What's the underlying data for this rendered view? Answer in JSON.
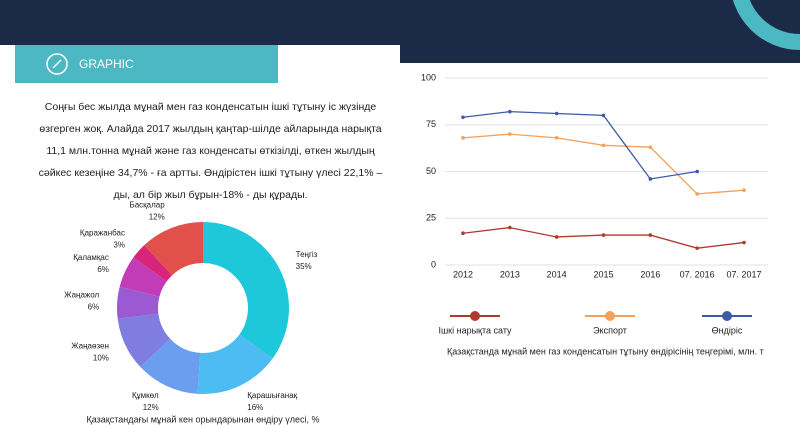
{
  "header": {
    "title": "GRAPHIC"
  },
  "paragraph": "Соңғы бес жылда мұнай мен газ конденсатын ішкі тұтыну іс жүзінде өзгерген жоқ. Алайда 2017 жылдың қаңтар-шілде айларында нарықта 11,1 млн.тонна мұнай және газ конденсаты өткізілді, өткен жылдың сәйкес кезеңіне 34,7% - ға артты. Өндірістен ішкі тұтыну үлесі 22,1% – ды, ал бір жыл бұрын-18% - ды құрады.",
  "chart_data": [
    {
      "type": "donut",
      "caption": "Қазақстандағы  мұнай кен орындарынан өндіру үлесі, %",
      "categories": [
        "Теңгіз",
        "Қарашығанақ",
        "Құмкөл",
        "Жаңаөзен",
        "Жаңажол",
        "Қаламқас",
        "Қаражанбас",
        "Басқалар"
      ],
      "values": [
        35,
        16,
        12,
        10,
        6,
        6,
        3,
        12
      ],
      "value_labels": [
        "35%",
        "16%",
        "12%",
        "10%",
        "6%",
        "6%",
        "3%",
        "12%"
      ],
      "colors": [
        "#1ec8da",
        "#4cbcf2",
        "#6c9ef0",
        "#7f7ee0",
        "#9c5ad2",
        "#c23cb8",
        "#d9247c",
        "#e2504b"
      ]
    },
    {
      "type": "line",
      "caption": "Қазақстанда  мұнай мен газ конденсатын тұтыну өндірісінің теңгерімі, млн. т",
      "categories": [
        "2012",
        "2013",
        "2014",
        "2015",
        "2016",
        "07. 2016",
        "07. 2017"
      ],
      "series": [
        {
          "name": "Ішкі нарықта сату",
          "color": "#b03a2e",
          "values": [
            17,
            20,
            15,
            16,
            16,
            9,
            12
          ]
        },
        {
          "name": "Экспорт",
          "color": "#f5a05a",
          "values": [
            68,
            70,
            68,
            64,
            63,
            38,
            40
          ]
        },
        {
          "name": "Өндіріс",
          "color": "#3c5aa6",
          "values": [
            79,
            82,
            81,
            80,
            46,
            50,
            null
          ]
        }
      ],
      "ylim": [
        0,
        100
      ],
      "yticks": [
        0,
        25,
        50,
        75,
        100
      ],
      "grid": true
    }
  ]
}
